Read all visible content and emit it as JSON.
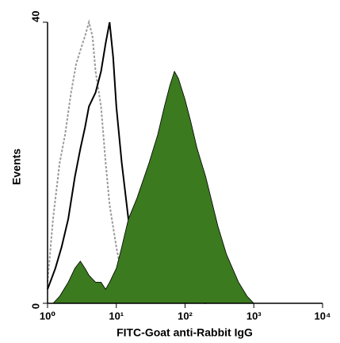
{
  "chart_data": {
    "type": "line",
    "xlabel": "FITC-Goat anti-Rabbit IgG",
    "ylabel": "Events",
    "xscale": "log",
    "xlim": [
      1,
      10000
    ],
    "xticks": [
      {
        "value": 1,
        "label": "10⁰"
      },
      {
        "value": 10,
        "label": "10¹"
      },
      {
        "value": 100,
        "label": "10²"
      },
      {
        "value": 1000,
        "label": "10³"
      },
      {
        "value": 10000,
        "label": "10⁴"
      }
    ],
    "ylim": [
      0,
      40
    ],
    "yticks": [
      0,
      40
    ],
    "series": [
      {
        "color": "#9a9a9a",
        "style": "dashed",
        "fill": false,
        "x": [
          1,
          1.2,
          1.5,
          1.8,
          2.2,
          2.6,
          3,
          3.5,
          4,
          4.5,
          5,
          6,
          7,
          8,
          10,
          12,
          15,
          20
        ],
        "values": [
          3,
          12,
          20,
          24,
          30,
          34,
          36,
          38,
          40,
          38,
          33,
          28,
          20,
          14,
          8,
          4,
          2,
          0
        ]
      },
      {
        "color": "#000000",
        "style": "solid",
        "fill": false,
        "x": [
          1,
          1.3,
          1.6,
          2,
          2.5,
          3,
          3.5,
          4,
          5,
          6,
          7,
          8,
          9,
          10,
          12,
          15,
          20,
          30,
          50,
          100,
          200
        ],
        "values": [
          2,
          5,
          8,
          12,
          18,
          22,
          25,
          28,
          30,
          33,
          37,
          40,
          35,
          28,
          20,
          12,
          8,
          5,
          3,
          1,
          0
        ]
      },
      {
        "color": "#3b7a1f",
        "style": "solid",
        "fill": true,
        "x": [
          1.2,
          1.5,
          2,
          2.5,
          3,
          3.5,
          4,
          5,
          6,
          7,
          8,
          10,
          12,
          15,
          20,
          30,
          40,
          50,
          60,
          70,
          80,
          100,
          120,
          150,
          200,
          300,
          400,
          600,
          800,
          1000
        ],
        "values": [
          0,
          1,
          3,
          5,
          6,
          5,
          4,
          3,
          3,
          2,
          3,
          5,
          8,
          12,
          15,
          20,
          24,
          28,
          31,
          33,
          32,
          29,
          26,
          22,
          18,
          11,
          7,
          3,
          1,
          0
        ]
      }
    ]
  }
}
